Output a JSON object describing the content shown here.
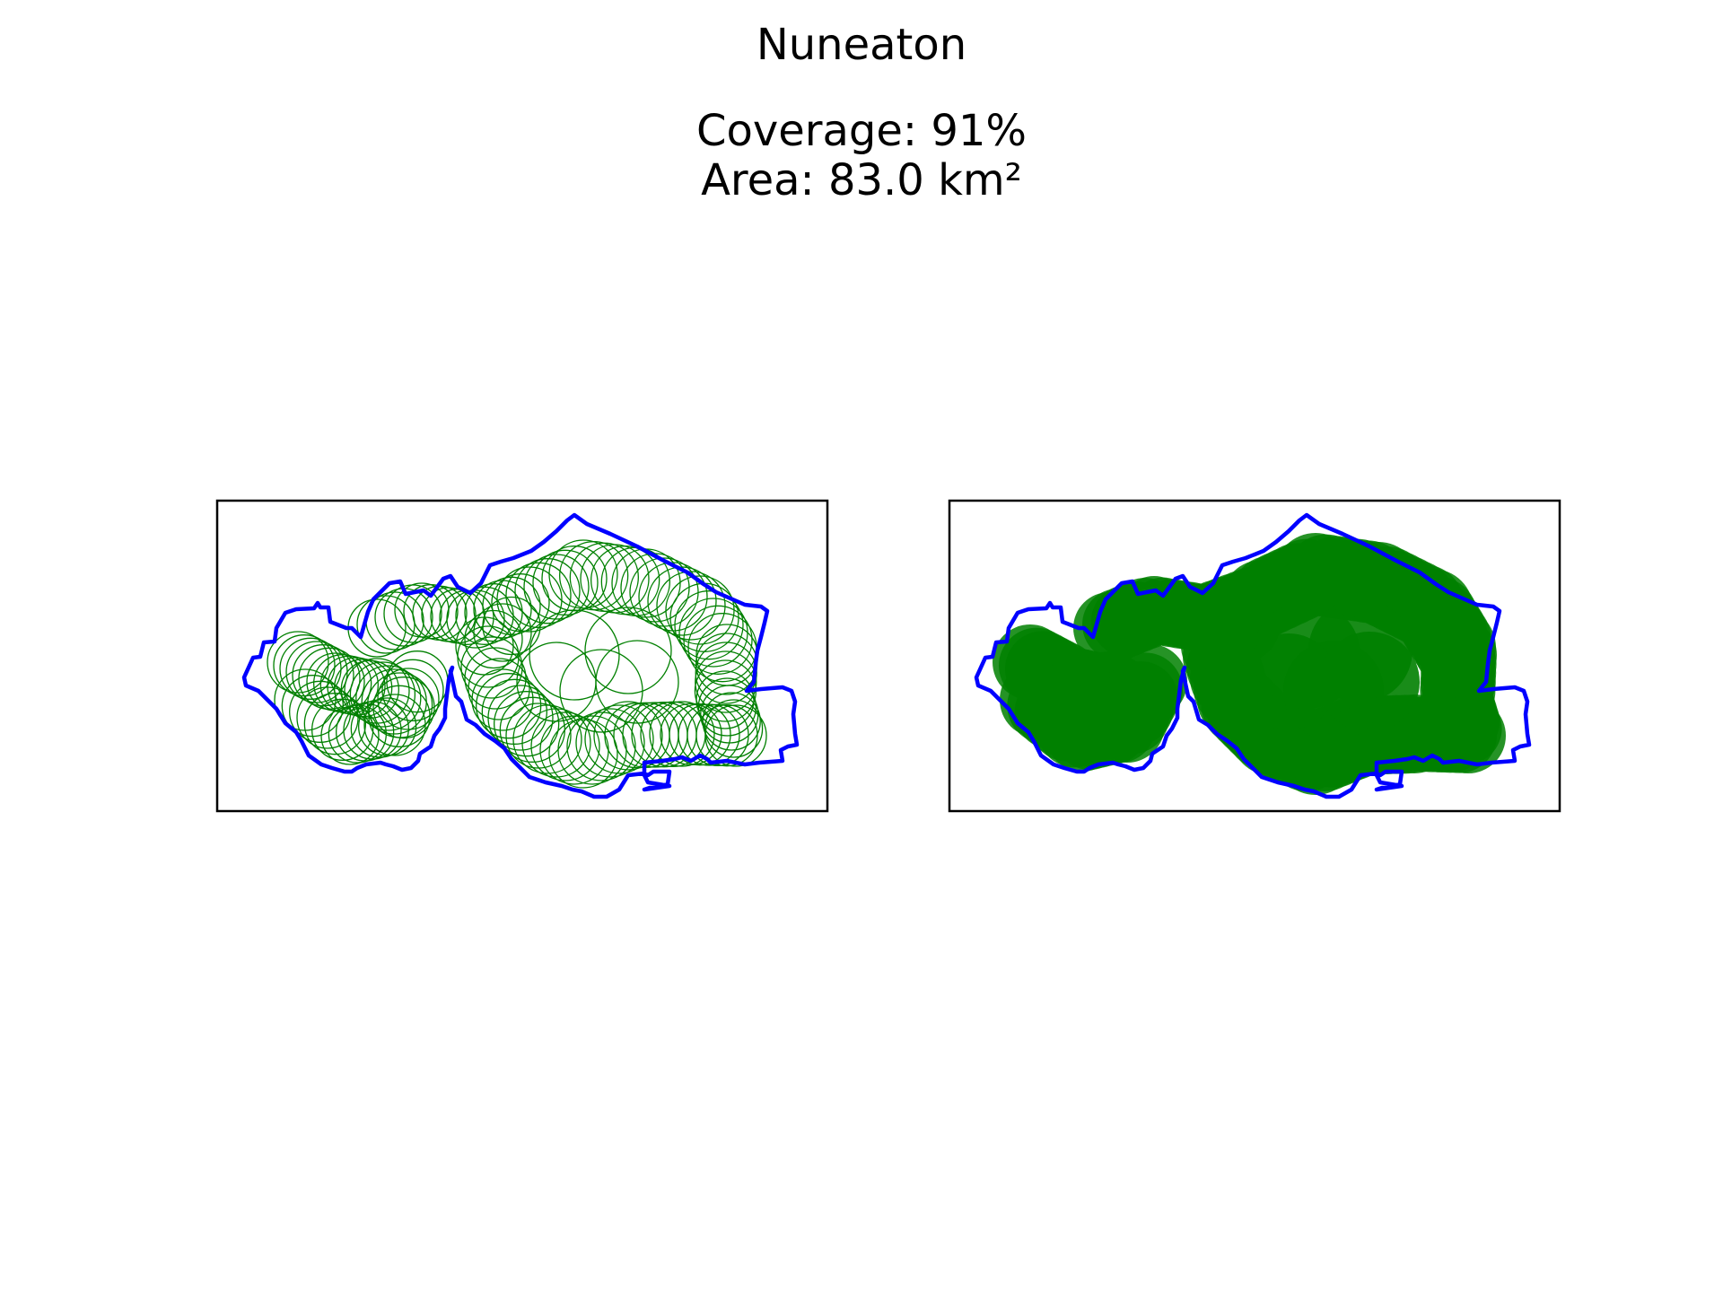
{
  "figure": {
    "title": "Nuneaton",
    "coverage_label": "Coverage: 91%",
    "area_label": "Area: 83.0 km²"
  },
  "colors": {
    "boundary": "#0000ff",
    "coverage": "#008000",
    "frame": "#000000",
    "background": "#ffffff"
  },
  "panels": [
    {
      "name": "outline-circles",
      "style": "unfilled circle outlines"
    },
    {
      "name": "filled-circles",
      "style": "filled circles"
    }
  ]
}
